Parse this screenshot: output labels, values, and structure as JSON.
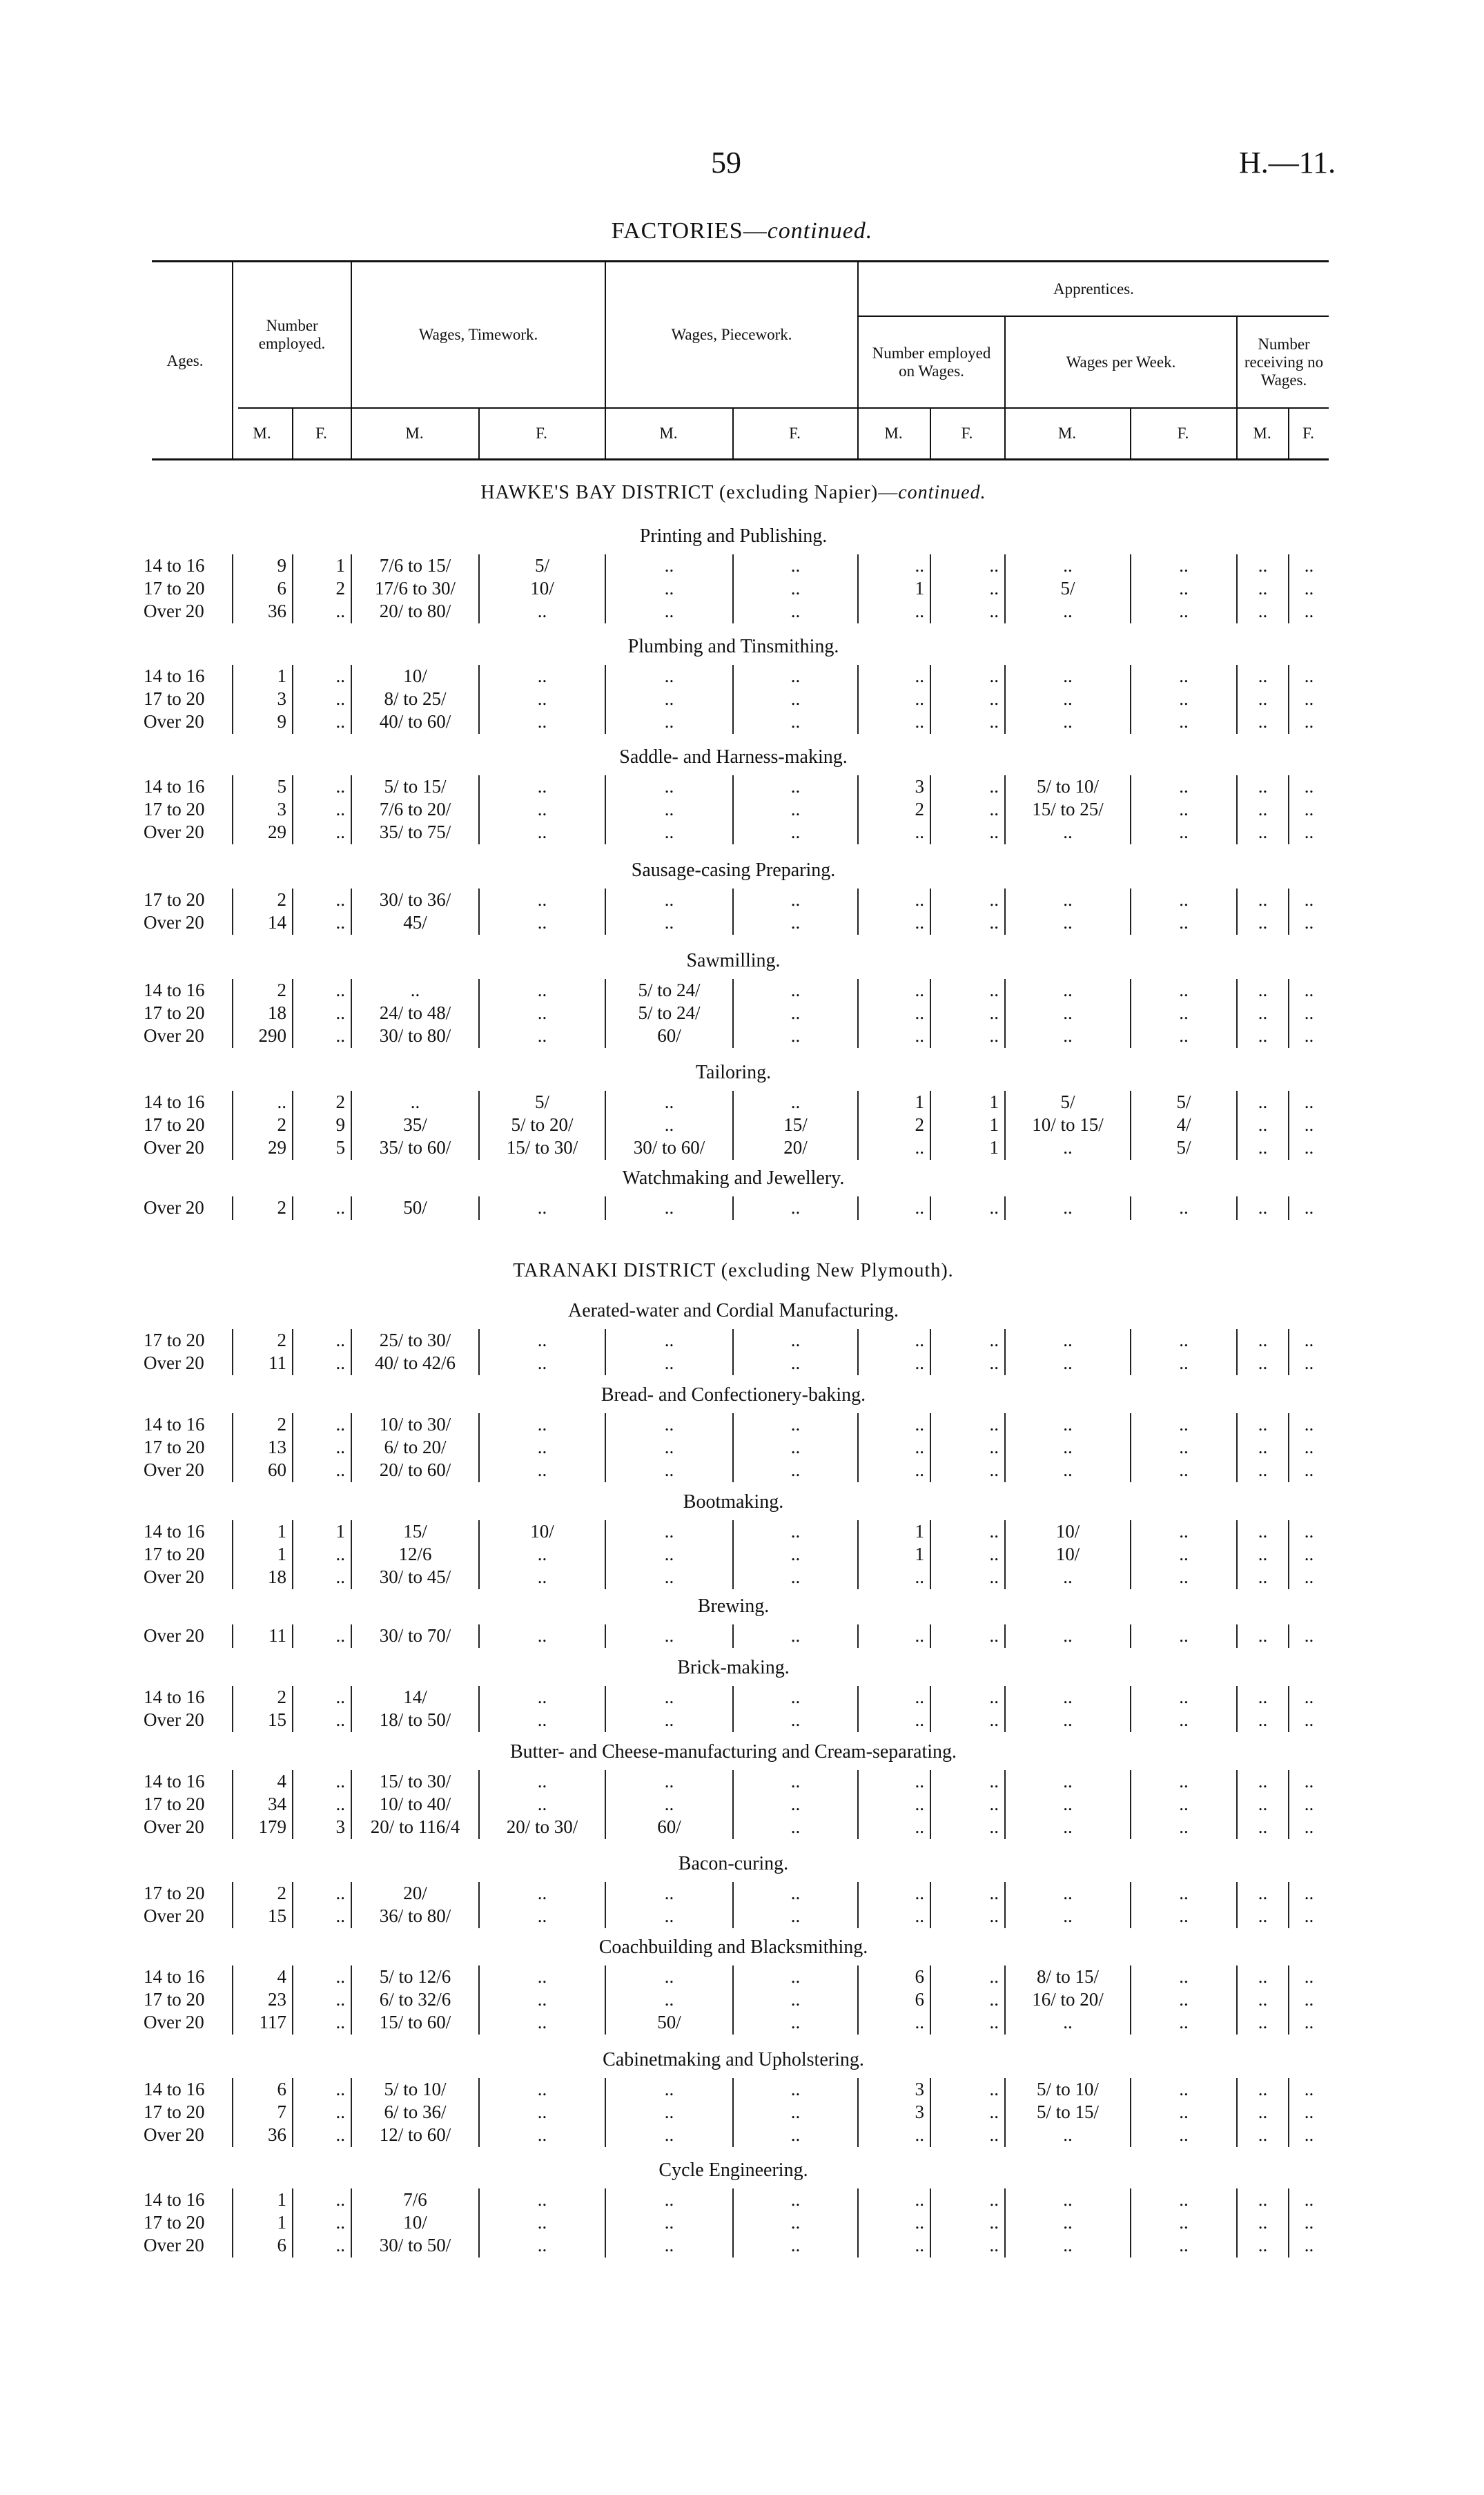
{
  "page": {
    "number": "59",
    "ref": "H.—11."
  },
  "heading": {
    "main": "FACTORIES—",
    "suffix": "continued."
  },
  "header": {
    "ages": "Ages.",
    "number_employed": "Number employed.",
    "wages_timework": "Wages, Timework.",
    "wages_piecework": "Wages, Piecework.",
    "apprentices": "Apprentices.",
    "app_number_employed": "Number employed on Wages.",
    "app_wages_per_week": "Wages per Week.",
    "app_no_wages": "Number receiving no Wages.",
    "m": "M.",
    "f": "F."
  },
  "districts": [
    {
      "title": "HAWKE'S BAY DISTRICT (excluding Napier)—",
      "suffix": "continued.",
      "sections": [
        {
          "title": "Printing and Publishing.",
          "rows": [
            [
              "14 to 16",
              "9",
              "1",
              "7/6 to 15/",
              "5/",
              "..",
              "..",
              "..",
              "..",
              "..",
              "..",
              "..",
              ".."
            ],
            [
              "17 to 20",
              "6",
              "2",
              "17/6 to 30/",
              "10/",
              "..",
              "..",
              "1",
              "..",
              "5/",
              "..",
              "..",
              ".."
            ],
            [
              "Over 20",
              "36",
              "..",
              "20/ to 80/",
              "..",
              "..",
              "..",
              "..",
              "..",
              "..",
              "..",
              "..",
              ".."
            ]
          ]
        },
        {
          "title": "Plumbing and Tinsmithing.",
          "rows": [
            [
              "14 to 16",
              "1",
              "..",
              "10/",
              "..",
              "..",
              "..",
              "..",
              "..",
              "..",
              "..",
              "..",
              ".."
            ],
            [
              "17 to 20",
              "3",
              "..",
              "8/ to 25/",
              "..",
              "..",
              "..",
              "..",
              "..",
              "..",
              "..",
              "..",
              ".."
            ],
            [
              "Over 20",
              "9",
              "..",
              "40/ to 60/",
              "..",
              "..",
              "..",
              "..",
              "..",
              "..",
              "..",
              "..",
              ".."
            ]
          ]
        },
        {
          "title": "Saddle- and Harness-making.",
          "rows": [
            [
              "14 to 16",
              "5",
              "..",
              "5/ to 15/",
              "..",
              "..",
              "..",
              "3",
              "..",
              "5/ to 10/",
              "..",
              "..",
              ".."
            ],
            [
              "17 to 20",
              "3",
              "..",
              "7/6 to 20/",
              "..",
              "..",
              "..",
              "2",
              "..",
              "15/ to 25/",
              "..",
              "..",
              ".."
            ],
            [
              "Over 20",
              "29",
              "..",
              "35/ to 75/",
              "..",
              "..",
              "..",
              "..",
              "..",
              "..",
              "..",
              "..",
              ".."
            ]
          ]
        },
        {
          "title": "Sausage-casing Preparing.",
          "rows": [
            [
              "17 to 20",
              "2",
              "..",
              "30/ to 36/",
              "..",
              "..",
              "..",
              "..",
              "..",
              "..",
              "..",
              "..",
              ".."
            ],
            [
              "Over 20",
              "14",
              "..",
              "45/",
              "..",
              "..",
              "..",
              "..",
              "..",
              "..",
              "..",
              "..",
              ".."
            ]
          ]
        },
        {
          "title": "Sawmilling.",
          "rows": [
            [
              "14 to 16",
              "2",
              "..",
              "..",
              "..",
              "5/ to 24/",
              "..",
              "..",
              "..",
              "..",
              "..",
              "..",
              ".."
            ],
            [
              "17 to 20",
              "18",
              "..",
              "24/ to 48/",
              "..",
              "5/ to 24/",
              "..",
              "..",
              "..",
              "..",
              "..",
              "..",
              ".."
            ],
            [
              "Over 20",
              "290",
              "..",
              "30/ to 80/",
              "..",
              "60/",
              "..",
              "..",
              "..",
              "..",
              "..",
              "..",
              ".."
            ]
          ]
        },
        {
          "title": "Tailoring.",
          "rows": [
            [
              "14 to 16",
              "..",
              "2",
              "..",
              "5/",
              "..",
              "..",
              "1",
              "1",
              "5/",
              "5/",
              "..",
              ".."
            ],
            [
              "17 to 20",
              "2",
              "9",
              "35/",
              "5/ to 20/",
              "..",
              "15/",
              "2",
              "1",
              "10/ to 15/",
              "4/",
              "..",
              ".."
            ],
            [
              "Over 20",
              "29",
              "5",
              "35/ to 60/",
              "15/ to 30/",
              "30/ to 60/",
              "20/",
              "..",
              "1",
              "..",
              "5/",
              "..",
              ".."
            ]
          ]
        },
        {
          "title": "Watchmaking and Jewellery.",
          "rows": [
            [
              "Over 20",
              "2",
              "..",
              "50/",
              "..",
              "..",
              "..",
              "..",
              "..",
              "..",
              "..",
              "..",
              ".."
            ]
          ]
        }
      ]
    },
    {
      "title": "TARANAKI DISTRICT (excluding New Plymouth).",
      "suffix": "",
      "sections": [
        {
          "title": "Aerated-water and Cordial Manufacturing.",
          "rows": [
            [
              "17 to 20",
              "2",
              "..",
              "25/ to 30/",
              "..",
              "..",
              "..",
              "..",
              "..",
              "..",
              "..",
              "..",
              ".."
            ],
            [
              "Over 20",
              "11",
              "..",
              "40/ to 42/6",
              "..",
              "..",
              "..",
              "..",
              "..",
              "..",
              "..",
              "..",
              ".."
            ]
          ]
        },
        {
          "title": "Bread- and Confectionery-baking.",
          "rows": [
            [
              "14 to 16",
              "2",
              "..",
              "10/ to 30/",
              "..",
              "..",
              "..",
              "..",
              "..",
              "..",
              "..",
              "..",
              ".."
            ],
            [
              "17 to 20",
              "13",
              "..",
              "6/ to 20/",
              "..",
              "..",
              "..",
              "..",
              "..",
              "..",
              "..",
              "..",
              ".."
            ],
            [
              "Over 20",
              "60",
              "..",
              "20/ to 60/",
              "..",
              "..",
              "..",
              "..",
              "..",
              "..",
              "..",
              "..",
              ".."
            ]
          ]
        },
        {
          "title": "Bootmaking.",
          "rows": [
            [
              "14 to 16",
              "1",
              "1",
              "15/",
              "10/",
              "..",
              "..",
              "1",
              "..",
              "10/",
              "..",
              "..",
              ".."
            ],
            [
              "17 to 20",
              "1",
              "..",
              "12/6",
              "..",
              "..",
              "..",
              "1",
              "..",
              "10/",
              "..",
              "..",
              ".."
            ],
            [
              "Over 20",
              "18",
              "..",
              "30/ to 45/",
              "..",
              "..",
              "..",
              "..",
              "..",
              "..",
              "..",
              "..",
              ".."
            ]
          ]
        },
        {
          "title": "Brewing.",
          "rows": [
            [
              "Over 20",
              "11",
              "..",
              "30/ to 70/",
              "..",
              "..",
              "..",
              "..",
              "..",
              "..",
              "..",
              "..",
              ".."
            ]
          ]
        },
        {
          "title": "Brick-making.",
          "rows": [
            [
              "14 to 16",
              "2",
              "..",
              "14/",
              "..",
              "..",
              "..",
              "..",
              "..",
              "..",
              "..",
              "..",
              ".."
            ],
            [
              "Over 20",
              "15",
              "..",
              "18/ to 50/",
              "..",
              "..",
              "..",
              "..",
              "..",
              "..",
              "..",
              "..",
              ".."
            ]
          ]
        },
        {
          "title": "Butter- and Cheese-manufacturing and Cream-separating.",
          "rows": [
            [
              "14 to 16",
              "4",
              "..",
              "15/ to 30/",
              "..",
              "..",
              "..",
              "..",
              "..",
              "..",
              "..",
              "..",
              ".."
            ],
            [
              "17 to 20",
              "34",
              "..",
              "10/ to 40/",
              "..",
              "..",
              "..",
              "..",
              "..",
              "..",
              "..",
              "..",
              ".."
            ],
            [
              "Over 20",
              "179",
              "3",
              "20/ to 116/4",
              "20/ to 30/",
              "60/",
              "..",
              "..",
              "..",
              "..",
              "..",
              "..",
              ".."
            ]
          ]
        },
        {
          "title": "Bacon-curing.",
          "rows": [
            [
              "17 to 20",
              "2",
              "..",
              "20/",
              "..",
              "..",
              "..",
              "..",
              "..",
              "..",
              "..",
              "..",
              ".."
            ],
            [
              "Over 20",
              "15",
              "..",
              "36/ to 80/",
              "..",
              "..",
              "..",
              "..",
              "..",
              "..",
              "..",
              "..",
              ".."
            ]
          ]
        },
        {
          "title": "Coachbuilding and Blacksmithing.",
          "rows": [
            [
              "14 to 16",
              "4",
              "..",
              "5/ to 12/6",
              "..",
              "..",
              "..",
              "6",
              "..",
              "8/ to 15/",
              "..",
              "..",
              ".."
            ],
            [
              "17 to 20",
              "23",
              "..",
              "6/ to 32/6",
              "..",
              "..",
              "..",
              "6",
              "..",
              "16/ to 20/",
              "..",
              "..",
              ".."
            ],
            [
              "Over 20",
              "117",
              "..",
              "15/ to 60/",
              "..",
              "50/",
              "..",
              "..",
              "..",
              "..",
              "..",
              "..",
              ".."
            ]
          ]
        },
        {
          "title": "Cabinetmaking and Upholstering.",
          "rows": [
            [
              "14 to 16",
              "6",
              "..",
              "5/ to 10/",
              "..",
              "..",
              "..",
              "3",
              "..",
              "5/ to 10/",
              "..",
              "..",
              ".."
            ],
            [
              "17 to 20",
              "7",
              "..",
              "6/ to 36/",
              "..",
              "..",
              "..",
              "3",
              "..",
              "5/ to 15/",
              "..",
              "..",
              ".."
            ],
            [
              "Over 20",
              "36",
              "..",
              "12/ to 60/",
              "..",
              "..",
              "..",
              "..",
              "..",
              "..",
              "..",
              "..",
              ".."
            ]
          ]
        },
        {
          "title": "Cycle Engineering.",
          "rows": [
            [
              "14 to 16",
              "1",
              "..",
              "7/6",
              "..",
              "..",
              "..",
              "..",
              "..",
              "..",
              "..",
              "..",
              ".."
            ],
            [
              "17 to 20",
              "1",
              "..",
              "10/",
              "..",
              "..",
              "..",
              "..",
              "..",
              "..",
              "..",
              "..",
              ".."
            ],
            [
              "Over 20",
              "6",
              "..",
              "30/ to 50/",
              "..",
              "..",
              "..",
              "..",
              "..",
              "..",
              "..",
              "..",
              ".."
            ]
          ]
        }
      ]
    }
  ]
}
